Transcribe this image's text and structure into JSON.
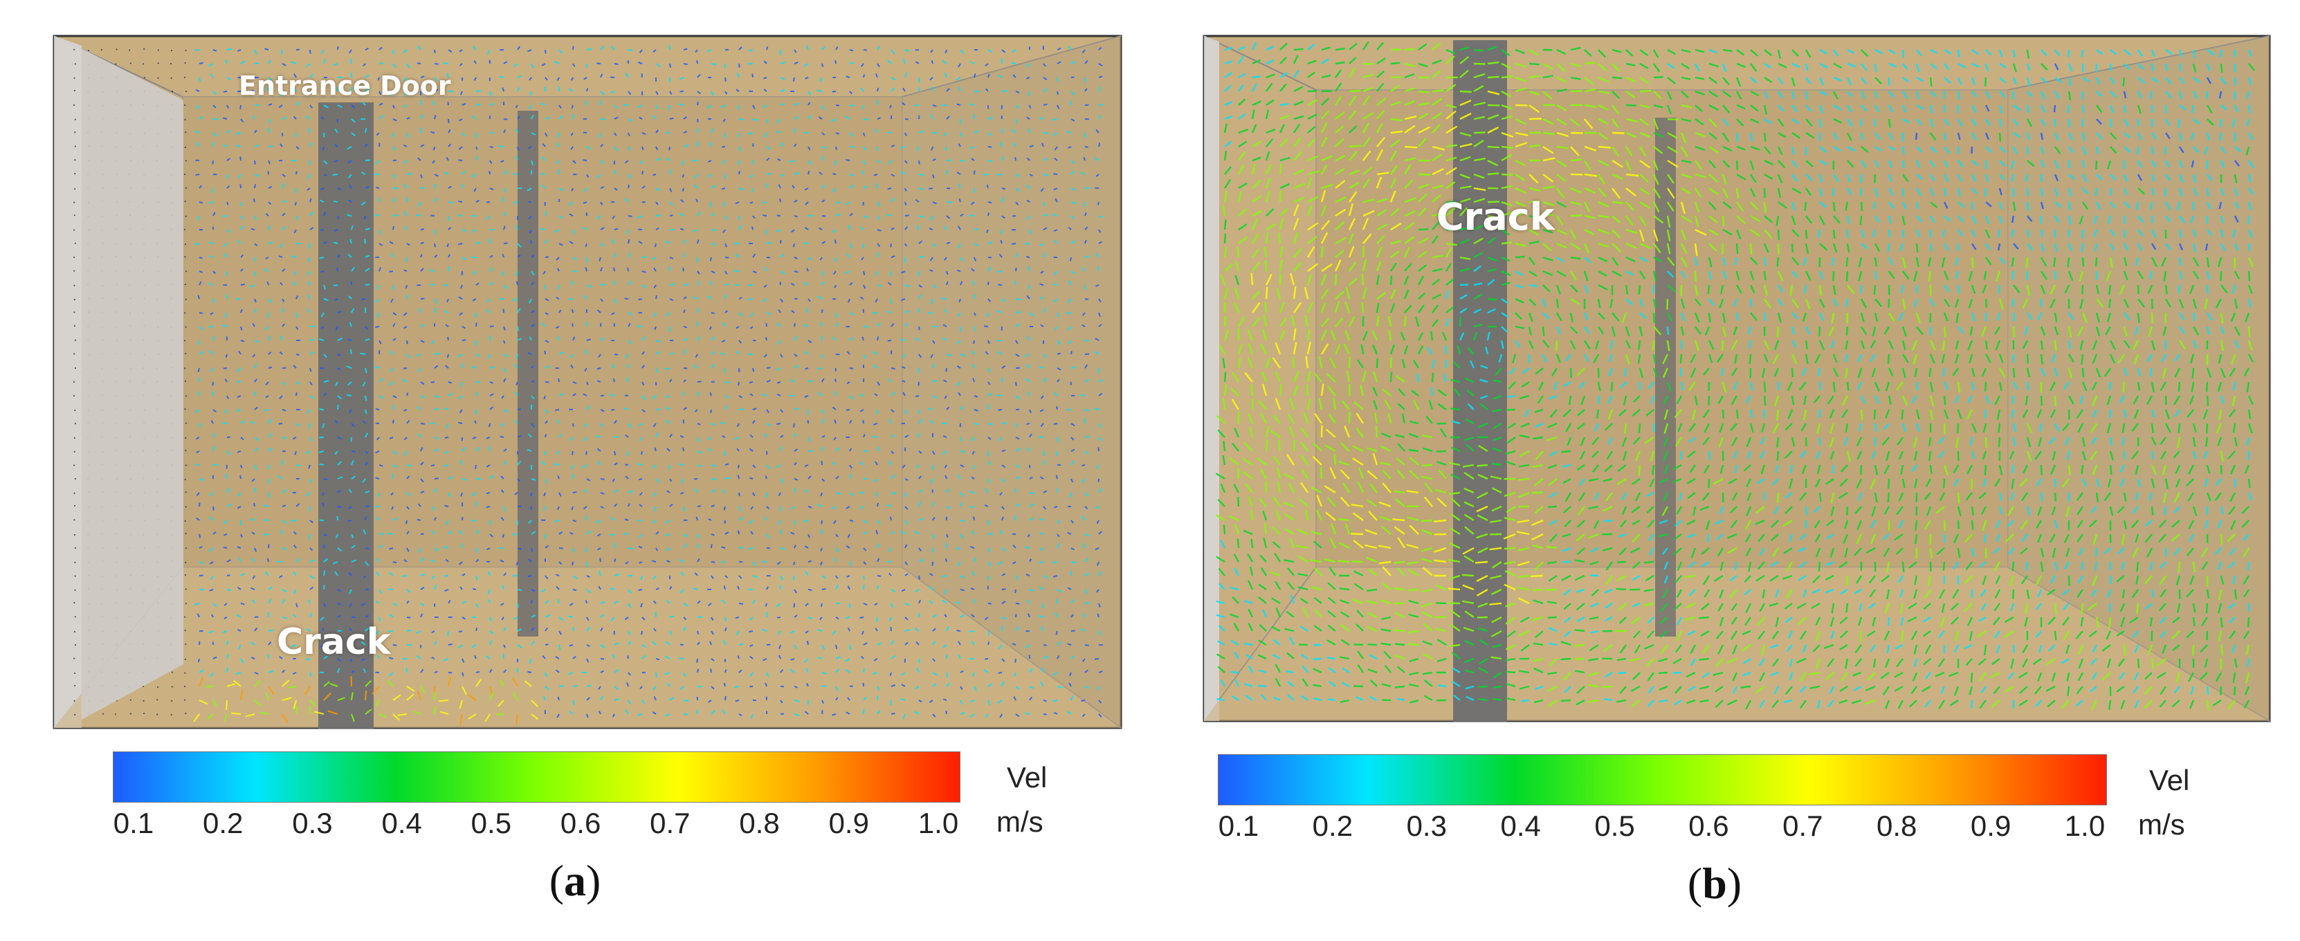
{
  "panels": [
    {
      "id": "a",
      "caption_open": "(",
      "caption_letter": "a",
      "caption_close": ")",
      "labels": {
        "door": "Entrance Door",
        "crack": "Crack"
      }
    },
    {
      "id": "b",
      "caption_open": "(",
      "caption_letter": "b",
      "caption_close": ")",
      "labels": {
        "crack": "Crack"
      }
    }
  ],
  "colorbar": {
    "title": "Vel",
    "unit": "m/s",
    "ticks": [
      "0.1",
      "0.2",
      "0.3",
      "0.4",
      "0.5",
      "0.6",
      "0.7",
      "0.8",
      "0.9",
      "1.0"
    ],
    "colors": [
      "#1e5bff",
      "#00e5ff",
      "#00d92a",
      "#7fff00",
      "#ffff00",
      "#ff9a00",
      "#ff1e00"
    ]
  },
  "colors": {
    "room_fill": "#c9ae80",
    "wall_edge": "#8c8c8c",
    "partition": "#6f6f6f",
    "left_panel": "#d7d7d7"
  }
}
